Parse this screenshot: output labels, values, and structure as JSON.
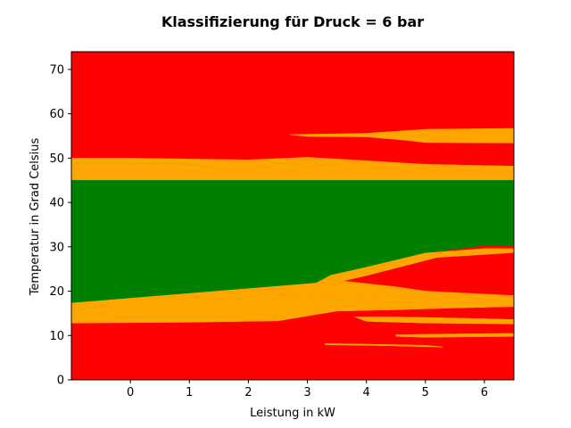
{
  "chart_data": {
    "type": "heatmap",
    "title": "Klassifizierung für Druck = 6 bar",
    "xlabel": "Leistung in kW",
    "ylabel": "Temperatur in Grad Celsius",
    "xlim": [
      -1,
      6.5
    ],
    "ylim": [
      0,
      74
    ],
    "xticks": [
      0,
      1,
      2,
      3,
      4,
      5,
      6
    ],
    "yticks": [
      0,
      10,
      20,
      30,
      40,
      50,
      60,
      70
    ],
    "grid": false,
    "colors": {
      "red": "#ff0000",
      "orange": "#ffa500",
      "green": "#008000"
    },
    "background_class": "red",
    "regions": [
      {
        "class": "orange",
        "polygon": [
          [
            -1,
            50
          ],
          [
            0,
            50
          ],
          [
            1,
            49.8
          ],
          [
            2,
            49.6
          ],
          [
            3,
            50.2
          ],
          [
            4,
            49.4
          ],
          [
            5,
            48.6
          ],
          [
            6.5,
            48.2
          ],
          [
            6.5,
            45
          ],
          [
            -1,
            45
          ]
        ]
      },
      {
        "class": "green",
        "polygon": [
          [
            -1,
            45
          ],
          [
            6.5,
            45
          ],
          [
            6.5,
            30.3
          ],
          [
            6,
            30.3
          ],
          [
            5,
            28.6
          ],
          [
            4,
            25.4
          ],
          [
            3.4,
            23.6
          ],
          [
            3,
            20.8
          ],
          [
            2.5,
            18.4
          ],
          [
            1,
            17.9
          ],
          [
            -1,
            17.3
          ]
        ]
      },
      {
        "class": "orange",
        "polygon": [
          [
            -1,
            17.3
          ],
          [
            1,
            17.9
          ],
          [
            2.5,
            18.4
          ],
          [
            3,
            20.8
          ],
          [
            3.4,
            23.6
          ],
          [
            4,
            25.4
          ],
          [
            5,
            28.6
          ],
          [
            6,
            29.6
          ],
          [
            6.5,
            29.6
          ],
          [
            6.5,
            28.7
          ],
          [
            5.2,
            27.6
          ],
          [
            4,
            23.5
          ],
          [
            3.6,
            22.3
          ]
        ]
      },
      {
        "class": "orange",
        "polygon": [
          [
            -1,
            17.3
          ],
          [
            3.6,
            22.3
          ],
          [
            4.5,
            21
          ],
          [
            5,
            20
          ],
          [
            6.5,
            19
          ],
          [
            6.5,
            17.6
          ],
          [
            5.5,
            18.6
          ],
          [
            4.5,
            19.1
          ],
          [
            3.6,
            19.4
          ],
          [
            3,
            19
          ],
          [
            2.8,
            18.6
          ]
        ]
      },
      {
        "class": "orange",
        "polygon": [
          [
            -1,
            17.3
          ],
          [
            2.8,
            18.6
          ],
          [
            3,
            19
          ],
          [
            3.6,
            19.4
          ],
          [
            4.5,
            19.1
          ],
          [
            5.5,
            18.6
          ],
          [
            6.5,
            17.6
          ],
          [
            6.5,
            16.5
          ],
          [
            5.5,
            16.2
          ],
          [
            4.5,
            15.8
          ],
          [
            3.5,
            15.5
          ],
          [
            2.5,
            13.3
          ],
          [
            1,
            13
          ],
          [
            -1,
            12.8
          ]
        ]
      },
      {
        "class": "orange",
        "polygon": [
          [
            3.8,
            14.2
          ],
          [
            4.5,
            14.2
          ],
          [
            6,
            13.8
          ],
          [
            6.5,
            13.6
          ],
          [
            6.5,
            12.6
          ],
          [
            5,
            12.8
          ],
          [
            4,
            13.2
          ]
        ]
      },
      {
        "class": "orange",
        "polygon": [
          [
            3.3,
            8.2
          ],
          [
            5,
            7.8
          ],
          [
            5.3,
            7.4
          ],
          [
            4,
            7.8
          ],
          [
            3.3,
            7.9
          ]
        ]
      },
      {
        "class": "orange",
        "polygon": [
          [
            4.5,
            10.2
          ],
          [
            6.5,
            10.5
          ],
          [
            6.5,
            9.8
          ],
          [
            5,
            9.6
          ],
          [
            4.5,
            9.8
          ]
        ]
      },
      {
        "class": "orange",
        "polygon": [
          [
            2.7,
            55.3
          ],
          [
            4,
            55.6
          ],
          [
            5,
            56.5
          ],
          [
            6.5,
            56.7
          ],
          [
            6.5,
            53.4
          ],
          [
            5,
            53.5
          ],
          [
            4.7,
            54
          ],
          [
            4,
            54.8
          ],
          [
            3,
            54.9
          ]
        ]
      }
    ]
  }
}
